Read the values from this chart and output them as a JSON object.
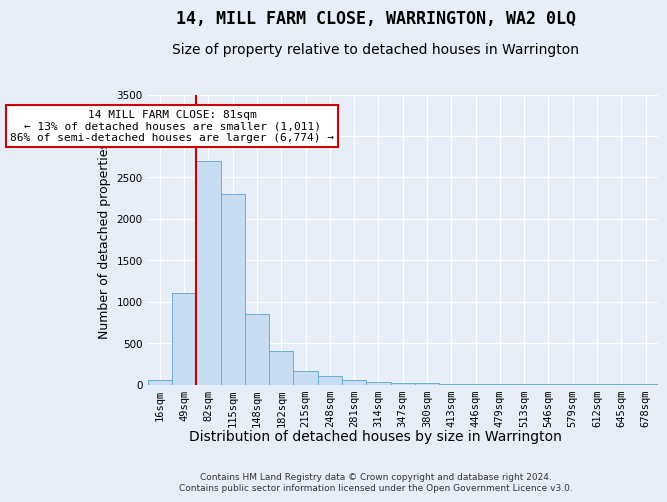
{
  "title": "14, MILL FARM CLOSE, WARRINGTON, WA2 0LQ",
  "subtitle": "Size of property relative to detached houses in Warrington",
  "xlabel": "Distribution of detached houses by size in Warrington",
  "ylabel": "Number of detached properties",
  "footer_line1": "Contains HM Land Registry data © Crown copyright and database right 2024.",
  "footer_line2": "Contains public sector information licensed under the Open Government Licence v3.0.",
  "categories": [
    "16sqm",
    "49sqm",
    "82sqm",
    "115sqm",
    "148sqm",
    "182sqm",
    "215sqm",
    "248sqm",
    "281sqm",
    "314sqm",
    "347sqm",
    "380sqm",
    "413sqm",
    "446sqm",
    "479sqm",
    "513sqm",
    "546sqm",
    "579sqm",
    "612sqm",
    "645sqm",
    "678sqm"
  ],
  "values": [
    50,
    1100,
    2700,
    2300,
    850,
    400,
    160,
    100,
    60,
    35,
    20,
    15,
    10,
    8,
    5,
    4,
    3,
    2,
    2,
    1,
    1
  ],
  "bar_color": "#c9ddf2",
  "bar_edge_color": "#6aaed6",
  "background_color": "#e8eef7",
  "plot_bg_color": "#e8eef7",
  "grid_color": "#ffffff",
  "annotation_box_color": "#ffffff",
  "annotation_box_edge": "#cc0000",
  "annotation_line_color": "#cc0000",
  "annotation_text_line1": "14 MILL FARM CLOSE: 81sqm",
  "annotation_text_line2": "← 13% of detached houses are smaller (1,011)",
  "annotation_text_line3": "86% of semi-detached houses are larger (6,774) →",
  "red_line_index": 2,
  "ylim": [
    0,
    3500
  ],
  "yticks": [
    0,
    500,
    1000,
    1500,
    2000,
    2500,
    3000,
    3500
  ],
  "title_fontsize": 12,
  "subtitle_fontsize": 10,
  "label_fontsize": 9,
  "tick_fontsize": 7.5,
  "annotation_fontsize": 8
}
